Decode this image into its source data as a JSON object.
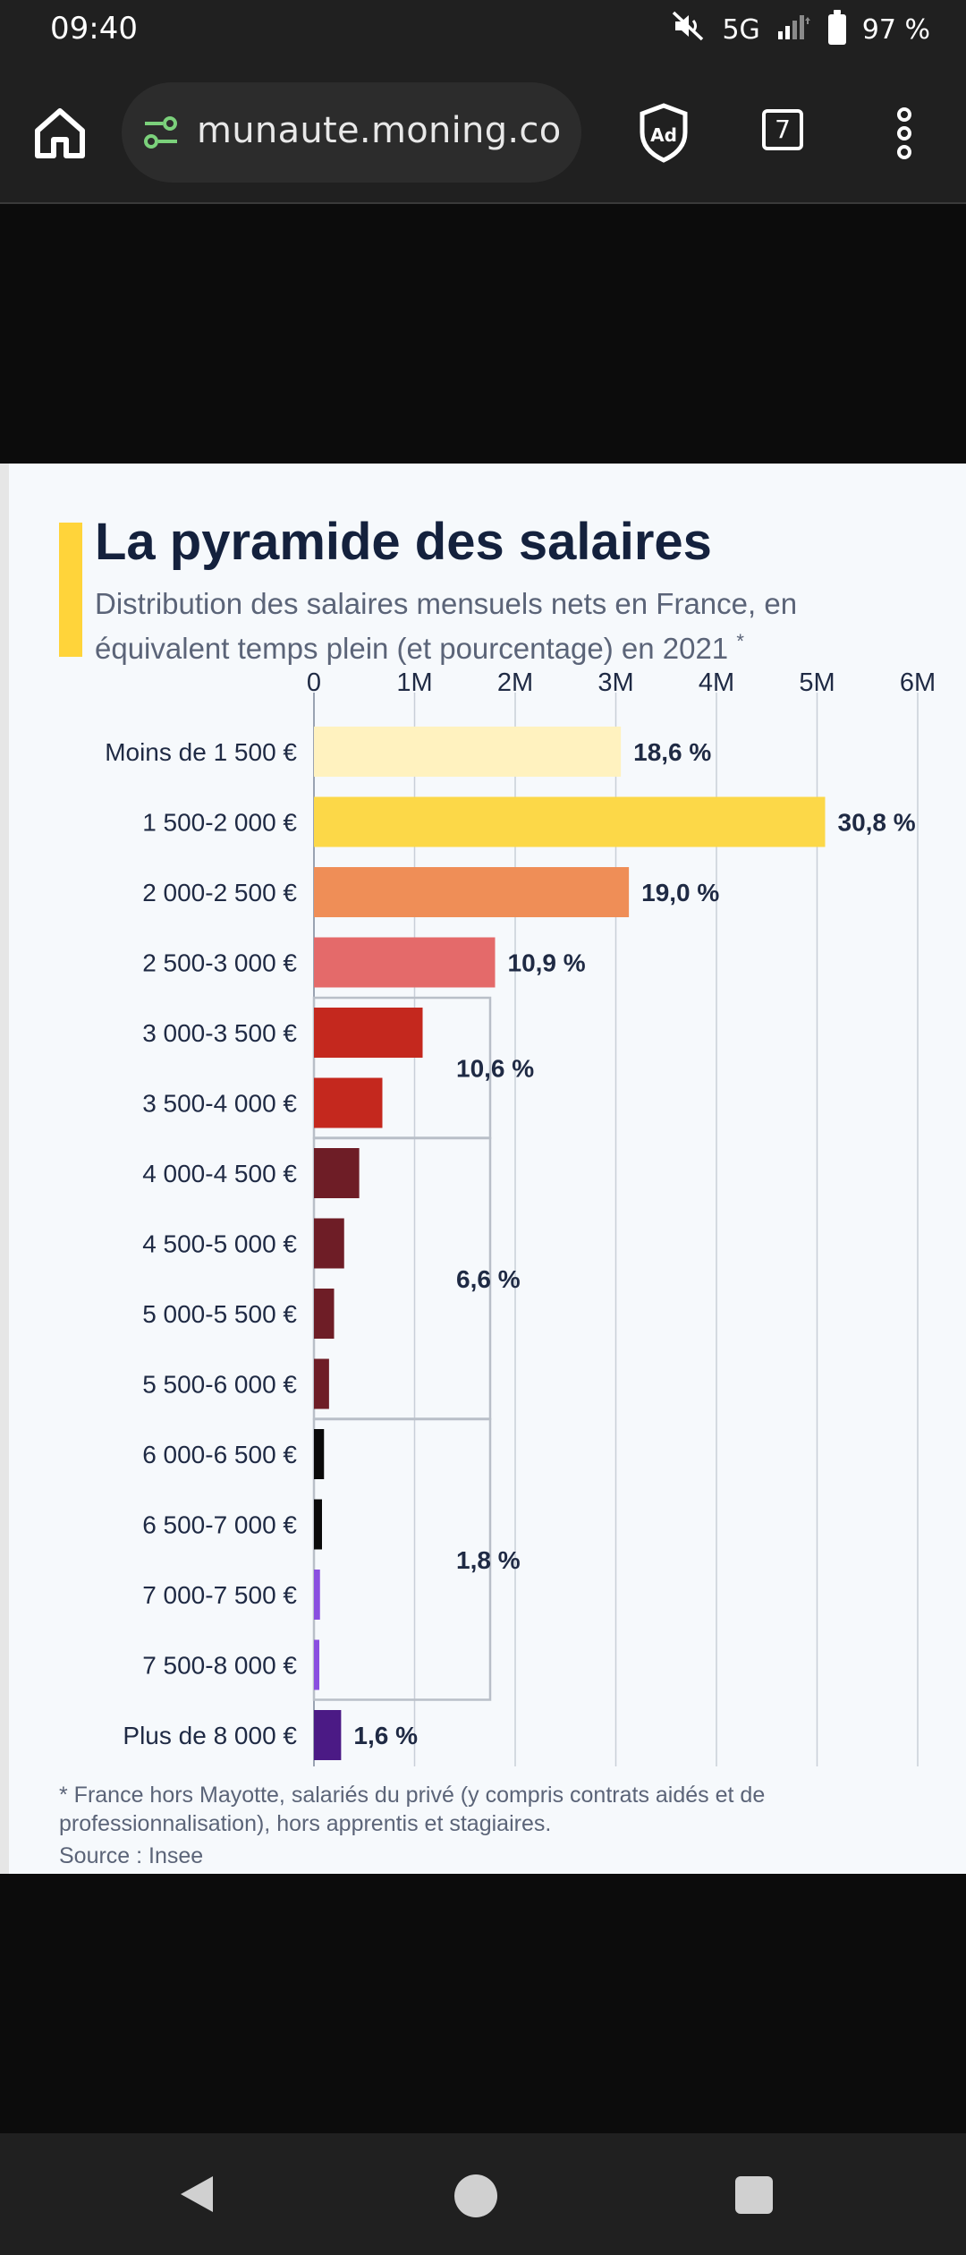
{
  "status_bar": {
    "time": "09:40",
    "network": "5G",
    "battery": "97 %",
    "icons": [
      "mute-icon",
      "signal-icon",
      "battery-icon"
    ]
  },
  "browser": {
    "url": "munaute.moning.co",
    "tab_count": "7",
    "icons": [
      "home-icon",
      "site-settings-icon",
      "adblock-icon",
      "tabs-icon",
      "menu-icon"
    ]
  },
  "chart": {
    "title": "La pyramide des salaires",
    "subtitle": "Distribution des salaires mensuels nets en France, en équivalent temps plein (et pourcentage) en 2021",
    "subtitle_mark": "*",
    "footnote": "* France hors Mayotte, salariés du privé (y compris contrats aidés et de professionnalisation), hors apprentis et stagiaires.",
    "source": "Source : Insee"
  },
  "chart_data": {
    "type": "bar",
    "orientation": "horizontal",
    "title": "La pyramide des salaires",
    "subtitle": "Distribution des salaires mensuels nets en France, en équivalent temps plein (et pourcentage) en 2021",
    "categories": [
      "Moins de 1 500 €",
      "1 500-2 000 €",
      "2 000-2 500 €",
      "2 500-3 000 €",
      "3 000-3 500 €",
      "3 500-4 000 €",
      "4 000-4 500 €",
      "4 500-5 000 €",
      "5 000-5 500 €",
      "5 500-6 000 €",
      "6 000-6 500 €",
      "6 500-7 000 €",
      "7 000-7 500 €",
      "7 500-8 000 €",
      "Plus de 8 000 €"
    ],
    "values": [
      3.05,
      5.08,
      3.13,
      1.8,
      1.08,
      0.68,
      0.45,
      0.3,
      0.2,
      0.15,
      0.1,
      0.08,
      0.06,
      0.05,
      0.27
    ],
    "colors": [
      "#fff2bf",
      "#fcd848",
      "#ef8e57",
      "#e46a6a",
      "#c4281e",
      "#c4281e",
      "#6e1d26",
      "#6e1d26",
      "#6e1d26",
      "#6e1d26",
      "#0a0a0a",
      "#0a0a0a",
      "#8a4fe0",
      "#8a4fe0",
      "#4b1a85"
    ],
    "labels": [
      "18,6 %",
      "30,8 %",
      "19,0 %",
      "10,9 %",
      "",
      "",
      "",
      "",
      "",
      "",
      "",
      "",
      "",
      "",
      "1,6 %"
    ],
    "groups": [
      {
        "from": 4,
        "to": 5,
        "label": "10,6 %"
      },
      {
        "from": 6,
        "to": 9,
        "label": "6,6 %"
      },
      {
        "from": 10,
        "to": 13,
        "label": "1,8 %"
      }
    ],
    "xaxis": {
      "ticks": [
        0,
        1,
        2,
        3,
        4,
        5,
        6
      ],
      "tick_labels": [
        "0",
        "1M",
        "2M",
        "3M",
        "4M",
        "5M",
        "6M"
      ],
      "range": [
        0,
        6
      ],
      "position": "top"
    },
    "grid": true,
    "legend": "none"
  }
}
